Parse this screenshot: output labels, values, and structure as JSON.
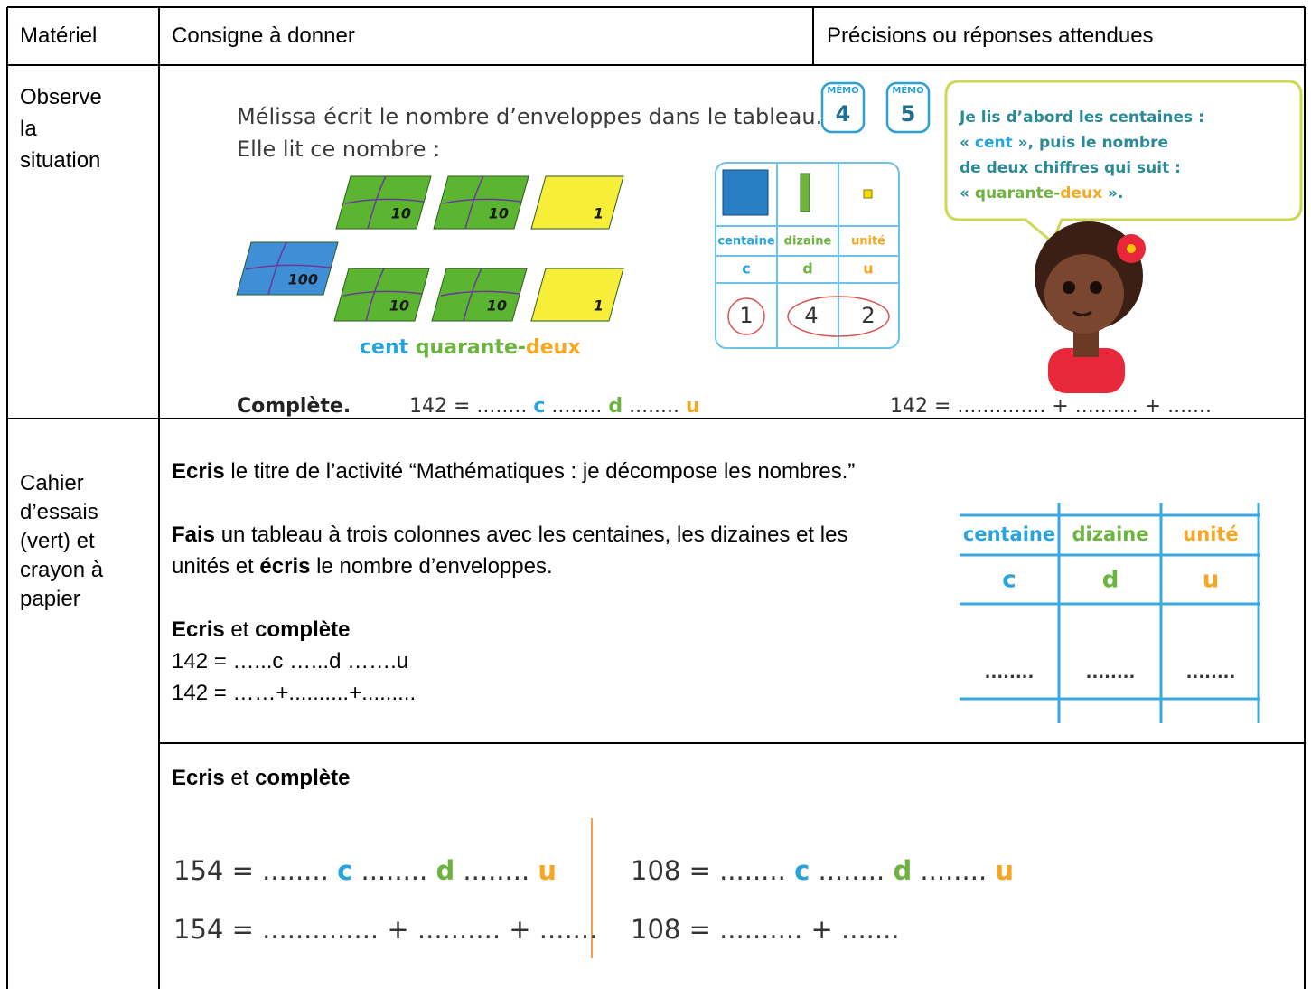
{
  "table": {
    "header": [
      "Matériel",
      "Consigne à donner",
      "Précisions ou réponses attendues"
    ],
    "rows": [
      {
        "material": "Observe la situation",
        "illustration": {
          "text_lines": [
            "Mélissa écrit le nombre d’enveloppes dans le tableau.",
            "Elle lit ce nombre :"
          ],
          "memo_badges": [
            {
              "label": "MÉMO",
              "number": "4"
            },
            {
              "label": "MÉMO",
              "number": "5"
            }
          ],
          "speech_bubble": {
            "text_color": "#2c8a96",
            "lines": [
              [
                "Je lis d’abord les centaines :"
              ],
              [
                "« ",
                {
                  "text": "cent",
                  "color": "#29a3dc"
                },
                " », puis le nombre"
              ],
              [
                "de deux chiffres qui suit :"
              ],
              [
                "« ",
                {
                  "text": "quarante-",
                  "color": "#6cb33f"
                },
                {
                  "text": "deux",
                  "color": "#f5a623"
                },
                " »."
              ]
            ]
          },
          "envelopes": [
            "10",
            "10",
            "1",
            "100",
            "10",
            "10",
            "1"
          ],
          "number_words": [
            {
              "text": "cent ",
              "color": "#29a3dc"
            },
            {
              "text": "quarante-",
              "color": "#6cb33f"
            },
            {
              "text": "deux",
              "color": "#f5a623"
            }
          ],
          "place_table": {
            "headers": [
              {
                "text": "centaine",
                "color": "#29a3dc"
              },
              {
                "text": "dizaine",
                "color": "#6cb33f"
              },
              {
                "text": "unité",
                "color": "#f5a623"
              }
            ],
            "letters": [
              {
                "text": "c",
                "color": "#29a3dc"
              },
              {
                "text": "d",
                "color": "#6cb33f"
              },
              {
                "text": "u",
                "color": "#f5a623"
              }
            ],
            "digits": [
              "1",
              "4",
              "2"
            ]
          },
          "exercise": {
            "label": "Complète.",
            "equations": [
              [
                "142 = ........ ",
                {
                  "text": "c",
                  "color": "#29a3dc"
                },
                " ........ ",
                {
                  "text": "d",
                  "color": "#6cb33f"
                },
                " ........ ",
                {
                  "text": "u",
                  "color": "#f5a623"
                }
              ],
              [
                "142 = .............. + .......... + ......."
              ]
            ]
          }
        }
      },
      {
        "material": "Cahier d’essais (vert) et crayon à papier",
        "paragraphs": [
          [
            {
              "text": "Ecris",
              "bold": true
            },
            " le titre de l’activité “Mathématiques : je décompose les nombres.”"
          ],
          [
            {
              "text": "Fais",
              "bold": true
            },
            " un tableau à trois colonnes avec les centaines, les dizaines et les unités et ",
            {
              "text": "écris",
              "bold": true
            },
            " le nombre d’enveloppes."
          ],
          [
            {
              "text": "Ecris",
              "bold": true
            },
            " et ",
            {
              "text": "complète",
              "bold": true
            }
          ]
        ],
        "lines": [
          "142 = …...c …...d …….u",
          "142 = ……+..........+........."
        ],
        "illustration": {
          "headers": [
            {
              "text": "centaine",
              "color": "#29a3dc"
            },
            {
              "text": "dizaine",
              "color": "#6cb33f"
            },
            {
              "text": "unité",
              "color": "#f5a623"
            }
          ],
          "letters": [
            {
              "text": "c",
              "color": "#29a3dc"
            },
            {
              "text": "d",
              "color": "#6cb33f"
            },
            {
              "text": "u",
              "color": "#f5a623"
            }
          ],
          "blanks": [
            "........",
            "........",
            "........"
          ]
        }
      },
      {
        "paragraphs": [
          [
            {
              "text": "Ecris",
              "bold": true
            },
            " et ",
            {
              "text": "complète",
              "bold": true
            }
          ]
        ],
        "equations": [
          [
            "154 = ........ ",
            {
              "text": "c",
              "color": "#29a3dc"
            },
            " ........ ",
            {
              "text": "d",
              "color": "#6cb33f"
            },
            " ........ ",
            {
              "text": "u",
              "color": "#f5a623"
            }
          ],
          [
            "154 = .............. + .......... + ......."
          ],
          [
            "108 = ........ ",
            {
              "text": "c",
              "color": "#29a3dc"
            },
            " ........ ",
            {
              "text": "d",
              "color": "#6cb33f"
            },
            " ........ ",
            {
              "text": "u",
              "color": "#f5a623"
            }
          ],
          [
            "108 = .......... + ......."
          ]
        ]
      }
    ]
  }
}
